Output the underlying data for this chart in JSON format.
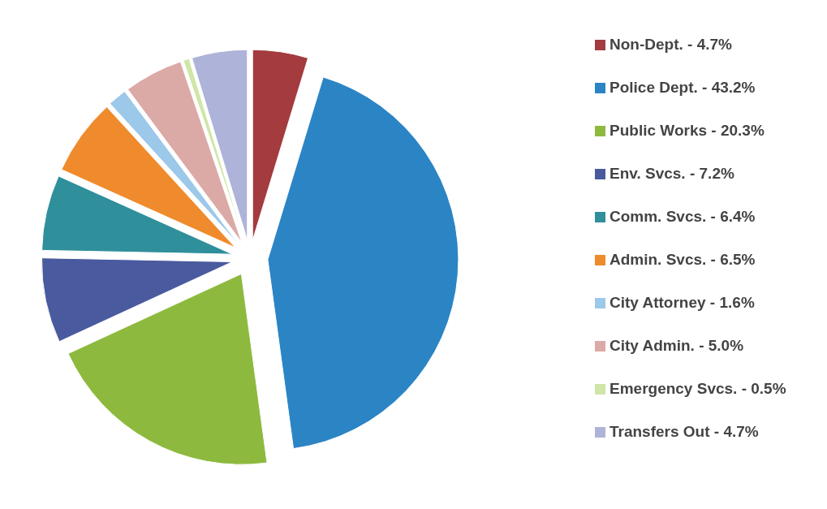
{
  "chart_data": {
    "type": "pie",
    "categories": [
      "Non-Dept. - 4.7%",
      "Police Dept. - 43.2%",
      "Public Works - 20.3%",
      "Env. Svcs. - 7.2%",
      "Comm. Svcs. - 6.4%",
      "Admin. Svcs. - 6.5%",
      "City Attorney - 1.6%",
      "City Admin. - 5.0%",
      "Emergency Svcs. - 0.5%",
      "Transfers Out - 4.7%"
    ],
    "values": [
      4.7,
      43.2,
      20.3,
      7.2,
      6.4,
      6.5,
      1.6,
      5.0,
      0.5,
      4.7
    ],
    "colors": [
      "#a33b3f",
      "#2b84c4",
      "#8dba3e",
      "#4a5a9e",
      "#2f8f9b",
      "#ef8b2c",
      "#9cc8ea",
      "#dcaaa6",
      "#cfe6a8",
      "#aeb3d9"
    ],
    "legend": "right"
  }
}
